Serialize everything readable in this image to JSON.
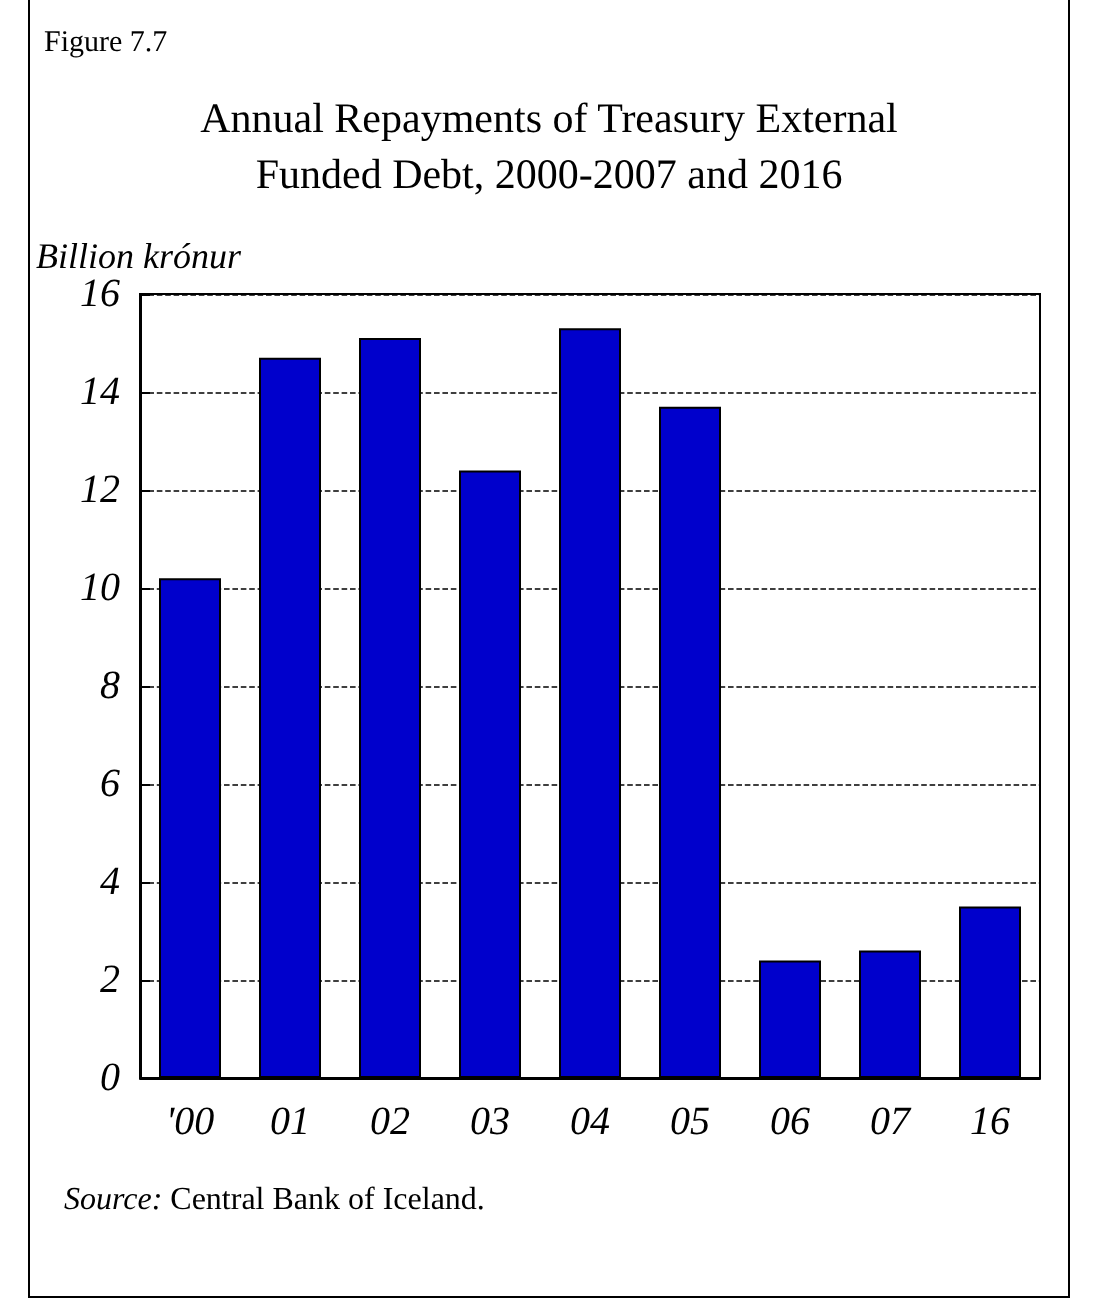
{
  "chart_data": {
    "type": "bar",
    "title": "Annual Repayments of Treasury External\nFunded Debt, 2000-2007 and 2016",
    "ylabel": "Billion krónur",
    "annotations": [
      "Figure 7.7",
      "Source: Central Bank of Iceland."
    ],
    "categories": [
      "'00",
      "01",
      "02",
      "03",
      "04",
      "05",
      "06",
      "07",
      "16"
    ],
    "values": [
      10.2,
      14.7,
      15.1,
      12.4,
      15.3,
      13.7,
      2.4,
      2.6,
      3.5
    ],
    "color": "#0000cc",
    "ylim": [
      0,
      16
    ],
    "yticks": [
      0,
      2,
      4,
      6,
      8,
      10,
      12,
      14,
      16
    ],
    "grid": "y"
  }
}
